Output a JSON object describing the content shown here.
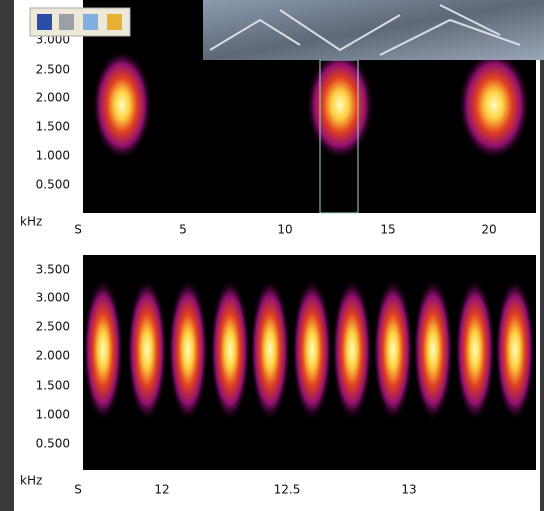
{
  "top_panel": {
    "y_ticks": [
      "3.000",
      "2.500",
      "2.000",
      "1.500",
      "1.000",
      "0.500"
    ],
    "y_unit": "kHz",
    "x_ticks": [
      "S",
      "5",
      "10",
      "15",
      "20"
    ]
  },
  "bottom_panel": {
    "y_ticks": [
      "3.500",
      "3.000",
      "2.500",
      "2.000",
      "1.500",
      "1.000",
      "0.500"
    ],
    "y_unit": "kHz",
    "x_ticks": [
      "S",
      "12",
      "12.5",
      "13"
    ]
  }
}
